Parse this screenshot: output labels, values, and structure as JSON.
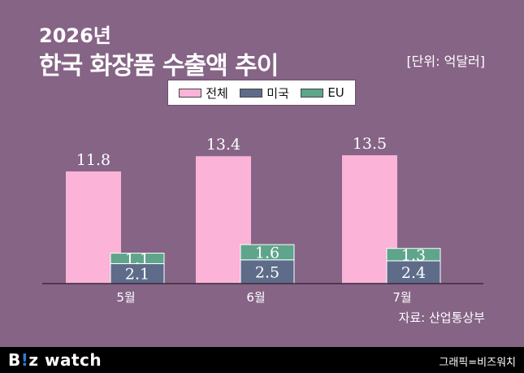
{
  "title": {
    "year": "2026년",
    "main": "한국 화장품 수출액 추이",
    "unit": "[단위: 억달러]"
  },
  "legend": {
    "total": "전체",
    "us": "미국",
    "eu": "EU"
  },
  "colors": {
    "background": "#866486",
    "total": "#fbb3d7",
    "us": "#5e6c8a",
    "eu": "#5ea58c"
  },
  "source": "자료: 산업통상부",
  "footer": {
    "logo_prefix": "B",
    "logo_bang": "!",
    "logo_suffix": "z watch",
    "credit": "그래픽=비즈워치"
  },
  "chart_data": {
    "type": "bar",
    "categories": [
      "5월",
      "6월",
      "7월"
    ],
    "series": [
      {
        "name": "전체",
        "values": [
          11.8,
          13.4,
          13.5
        ],
        "value_labels": [
          "11.8",
          "13.4",
          "13.5"
        ]
      },
      {
        "name": "미국",
        "values": [
          2.1,
          2.5,
          2.4
        ],
        "value_labels": [
          "2.1",
          "2.5",
          "2.4"
        ]
      },
      {
        "name": "EU",
        "values": [
          1.1,
          1.6,
          1.3
        ],
        "value_labels": [
          "1.1",
          "1.6",
          "1.3"
        ]
      }
    ],
    "stacked_series": [
      "미국",
      "EU"
    ],
    "ylim": [
      0,
      14.5
    ],
    "grid": false,
    "legend_position": "top-center"
  }
}
